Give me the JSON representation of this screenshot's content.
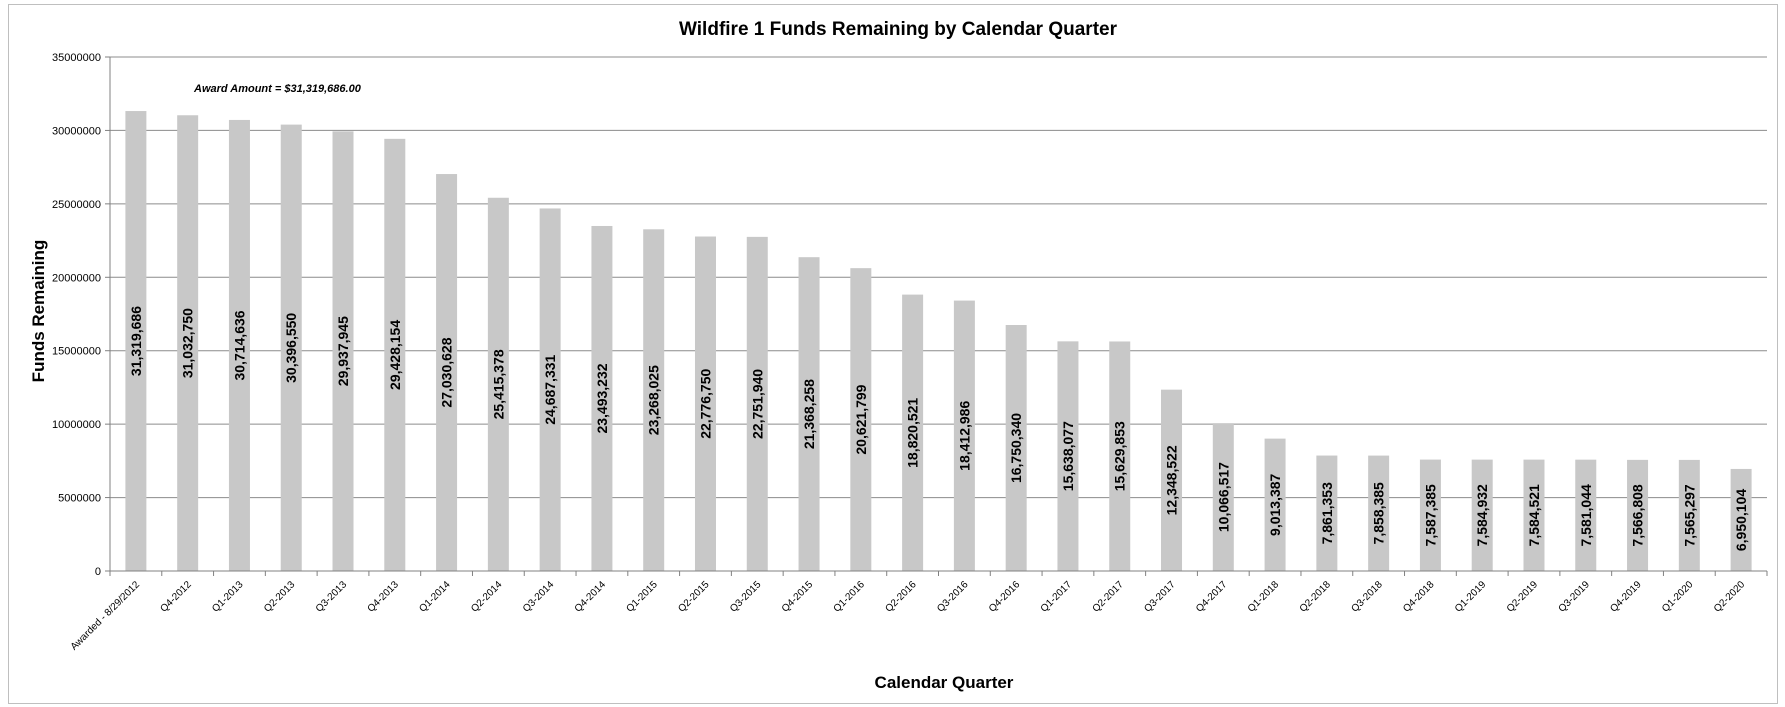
{
  "chart_data": {
    "type": "bar",
    "title": "Wildfire 1 Funds Remaining by Calendar Quarter",
    "xlabel": "Calendar Quarter",
    "ylabel": "Funds Remaining",
    "ylim": [
      0,
      35000000
    ],
    "yticks": [
      0,
      5000000,
      10000000,
      15000000,
      20000000,
      25000000,
      30000000,
      35000000
    ],
    "ytick_labels": [
      "0",
      "5000000",
      "10000000",
      "15000000",
      "20000000",
      "25000000",
      "30000000",
      "35000000"
    ],
    "grid": true,
    "bar_color": "#c8c8c8",
    "annotation": "Award Amount = $31,319,686.00",
    "categories": [
      "Awarded - 8/29/2012",
      "Q4-2012",
      "Q1-2013",
      "Q2-2013",
      "Q3-2013",
      "Q4-2013",
      "Q1-2014",
      "Q2-2014",
      "Q3-2014",
      "Q4-2014",
      "Q1-2015",
      "Q2-2015",
      "Q3-2015",
      "Q4-2015",
      "Q1-2016",
      "Q2-2016",
      "Q3-2016",
      "Q4-2016",
      "Q1-2017",
      "Q2-2017",
      "Q3-2017",
      "Q4-2017",
      "Q1-2018",
      "Q2-2018",
      "Q3-2018",
      "Q4-2018",
      "Q1-2019",
      "Q2-2019",
      "Q3-2019",
      "Q4-2019",
      "Q1-2020",
      "Q2-2020"
    ],
    "values": [
      31319686,
      31032750,
      30714636,
      30396550,
      29937945,
      29428154,
      27030628,
      25415378,
      24687331,
      23493232,
      23268025,
      22776750,
      22751940,
      21368258,
      20621799,
      18820521,
      18412986,
      16750340,
      15638077,
      15629853,
      12348522,
      10066517,
      9013387,
      7861353,
      7858385,
      7587385,
      7584932,
      7584521,
      7581044,
      7566808,
      7565297,
      6950104
    ],
    "data_labels": [
      "31,319,686",
      "31,032,750",
      "30,714,636",
      "30,396,550",
      "29,937,945",
      "29,428,154",
      "27,030,628",
      "25,415,378",
      "24,687,331",
      "23,493,232",
      "23,268,025",
      "22,776,750",
      "22,751,940",
      "21,368,258",
      "20,621,799",
      "18,820,521",
      "18,412,986",
      "16,750,340",
      "15,638,077",
      "15,629,853",
      "12,348,522",
      "10,066,517",
      "9,013,387",
      "7,861,353",
      "7,858,385",
      "7,587,385",
      "7,584,932",
      "7,584,521",
      "7,581,044",
      "7,566,808",
      "7,565,297",
      "6,950,104"
    ]
  }
}
